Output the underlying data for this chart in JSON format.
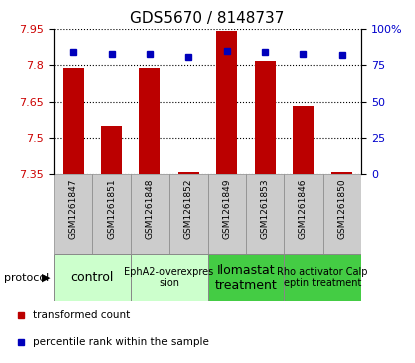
{
  "title": "GDS5670 / 8148737",
  "samples": [
    "GSM1261847",
    "GSM1261851",
    "GSM1261848",
    "GSM1261852",
    "GSM1261849",
    "GSM1261853",
    "GSM1261846",
    "GSM1261850"
  ],
  "transformed_counts": [
    7.79,
    7.55,
    7.79,
    7.36,
    7.94,
    7.82,
    7.63,
    7.36
  ],
  "percentile_ranks": [
    84,
    83,
    83,
    81,
    85,
    84,
    83,
    82
  ],
  "ylim_left": [
    7.35,
    7.95
  ],
  "ylim_right": [
    0,
    100
  ],
  "yticks_left": [
    7.35,
    7.5,
    7.65,
    7.8,
    7.95
  ],
  "yticks_right": [
    0,
    25,
    50,
    75,
    100
  ],
  "ytick_labels_right": [
    "0",
    "25",
    "50",
    "75",
    "100%"
  ],
  "bar_color": "#bb0000",
  "dot_color": "#0000bb",
  "protocols": [
    {
      "label": "control",
      "span": [
        0,
        2
      ],
      "color": "#ccffcc",
      "fontsize": 9
    },
    {
      "label": "EphA2-overexpres\nsion",
      "span": [
        2,
        4
      ],
      "color": "#ccffcc",
      "fontsize": 7
    },
    {
      "label": "Ilomastat\ntreatment",
      "span": [
        4,
        6
      ],
      "color": "#44cc44",
      "fontsize": 9
    },
    {
      "label": "Rho activator Calp\neptin treatment",
      "span": [
        6,
        8
      ],
      "color": "#44cc44",
      "fontsize": 7
    }
  ],
  "protocol_label": "protocol",
  "legend_items": [
    {
      "color": "#bb0000",
      "label": "transformed count"
    },
    {
      "color": "#0000bb",
      "label": "percentile rank within the sample"
    }
  ],
  "sample_cell_color": "#cccccc",
  "title_fontsize": 11,
  "bar_width": 0.55
}
